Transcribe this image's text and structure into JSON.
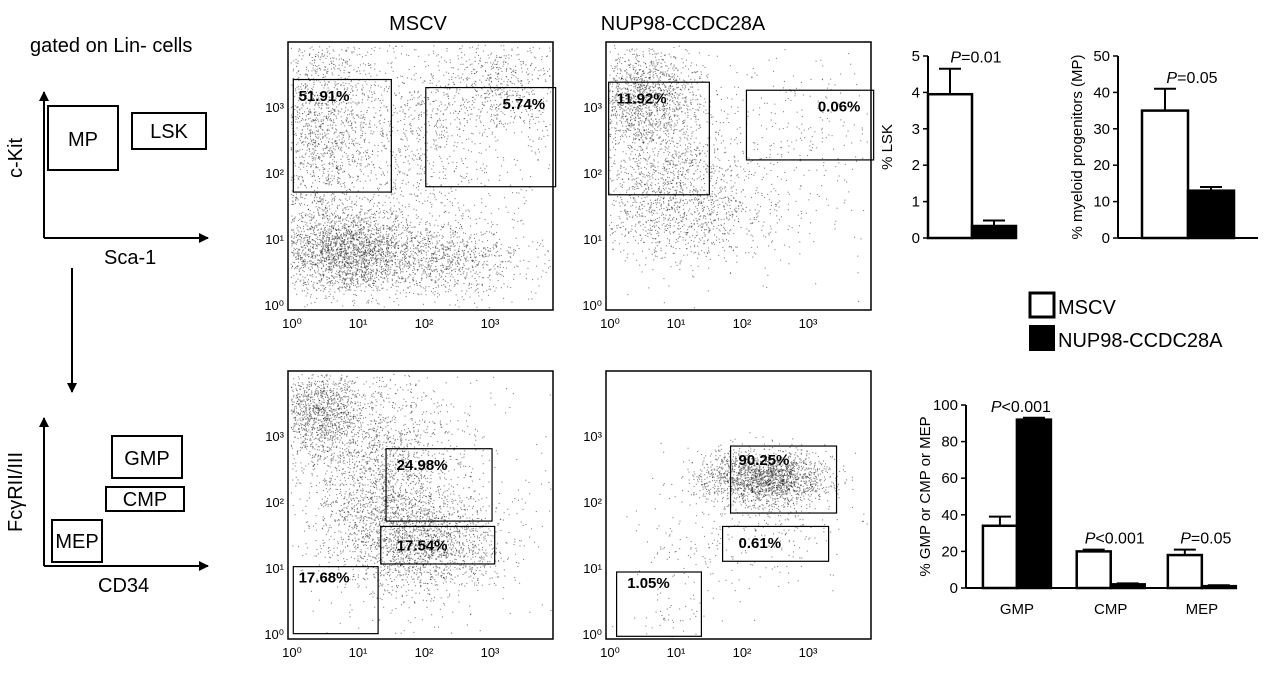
{
  "schematic": {
    "top_title": "gated on Lin- cells",
    "top_y_label": "c-Kit",
    "top_x_label": "Sca-1",
    "gate_mp": "MP",
    "gate_lsk": "LSK",
    "bottom_y_label": "FcγRII/III",
    "bottom_x_label": "CD34",
    "gate_gmp": "GMP",
    "gate_cmp": "CMP",
    "gate_mep": "MEP"
  },
  "column_titles": {
    "mscv": "MSCV",
    "nup98": "NUP98-CCDC28A"
  },
  "log_ticks": [
    "10⁰",
    "10¹",
    "10²",
    "10³"
  ],
  "flow_gates": {
    "top_mscv": {
      "mp": "51.91%",
      "lsk": "5.74%"
    },
    "top_nup98": {
      "mp": "11.92%",
      "lsk": "0.06%"
    },
    "bottom_mscv": {
      "gmp": "24.98%",
      "cmp": "17.54%",
      "mep": "17.68%"
    },
    "bottom_nup98": {
      "gmp": "90.25%",
      "cmp": "0.61%",
      "mep": "1.05%"
    }
  },
  "legend": {
    "mscv": "MSCV",
    "nup98": "NUP98-CCDC28A"
  },
  "colors": {
    "mscv_fill": "#ffffff",
    "nup98_fill": "#000000"
  },
  "chart_data": [
    {
      "type": "bar",
      "ylabel": "% LSK",
      "ylim": [
        0,
        5
      ],
      "yticks": [
        "0",
        "1",
        "2",
        "3",
        "4",
        "5"
      ],
      "series": [
        {
          "name": "MSCV",
          "values": [
            3.95
          ],
          "errors": [
            0.7
          ]
        },
        {
          "name": "NUP98-CCDC28A",
          "values": [
            0.33
          ],
          "errors": [
            0.15
          ]
        }
      ],
      "annotations": [
        {
          "label": "P",
          "text": "=0.01"
        }
      ]
    },
    {
      "type": "bar",
      "ylabel": "% myeloid progenitors (MP)",
      "ylim": [
        0,
        50
      ],
      "yticks": [
        "0",
        "10",
        "20",
        "30",
        "40",
        "50"
      ],
      "series": [
        {
          "name": "MSCV",
          "values": [
            35
          ],
          "errors": [
            6
          ]
        },
        {
          "name": "NUP98-CCDC28A",
          "values": [
            13
          ],
          "errors": [
            1
          ]
        }
      ],
      "annotations": [
        {
          "label": "P",
          "text": "=0.05"
        }
      ]
    },
    {
      "type": "bar",
      "ylabel": "% GMP or CMP or MEP",
      "ylim": [
        0,
        100
      ],
      "yticks": [
        "0",
        "20",
        "40",
        "60",
        "80",
        "100"
      ],
      "categories": [
        "GMP",
        "CMP",
        "MEP"
      ],
      "series": [
        {
          "name": "MSCV",
          "values": [
            34,
            20,
            18
          ],
          "errors": [
            5,
            1,
            3
          ]
        },
        {
          "name": "NUP98-CCDC28A",
          "values": [
            92,
            2,
            1
          ],
          "errors": [
            1,
            0.5,
            0.5
          ]
        }
      ],
      "annotations": [
        {
          "label": "P",
          "text": "<0.001"
        },
        {
          "label": "P",
          "text": "<0.001"
        },
        {
          "label": "P",
          "text": "=0.05"
        }
      ]
    }
  ]
}
